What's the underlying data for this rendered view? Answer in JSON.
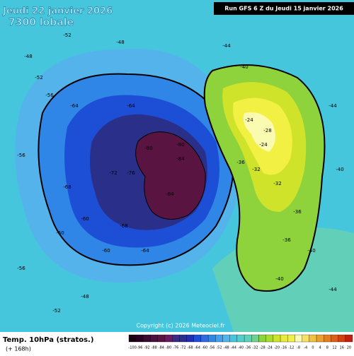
{
  "header": {
    "valid_date": "Jeudi 22 janvier 2026",
    "valid_time": "7300 lobale",
    "run": "Run GFS 6 Z du Jeudi 15 janvier 2026"
  },
  "footer": {
    "title": "Temp. 10hPa (stratos.)",
    "lead": "(+ 168h)",
    "copyright": "Copyright (c) 2026 Meteociel.fr"
  },
  "map": {
    "labels": [
      "-80",
      "-84",
      "-84",
      "-80",
      "-76",
      "-72",
      "-64",
      "-64",
      "-68",
      "-60",
      "-56",
      "-52",
      "-48",
      "-44",
      "-40",
      "-36",
      "-32",
      "-28",
      "-24",
      "-24",
      "-32",
      "-36",
      "-40",
      "-44",
      "-48",
      "-52",
      "-56",
      "-60",
      "-64",
      "-68",
      "-36",
      "-40",
      "-48",
      "-52",
      "-44",
      "-40",
      "-56",
      "-60"
    ]
  },
  "colorbar": {
    "labels": [
      "-100",
      "-96",
      "-92",
      "-88",
      "-84",
      "-80",
      "-76",
      "-72",
      "-68",
      "-64",
      "-60",
      "-56",
      "-52",
      "-48",
      "-44",
      "-40",
      "-36",
      "-32",
      "-28",
      "-24",
      "-20",
      "-16",
      "-12",
      "-8",
      "-4",
      "0",
      "4",
      "8",
      "12",
      "16",
      "20"
    ]
  }
}
